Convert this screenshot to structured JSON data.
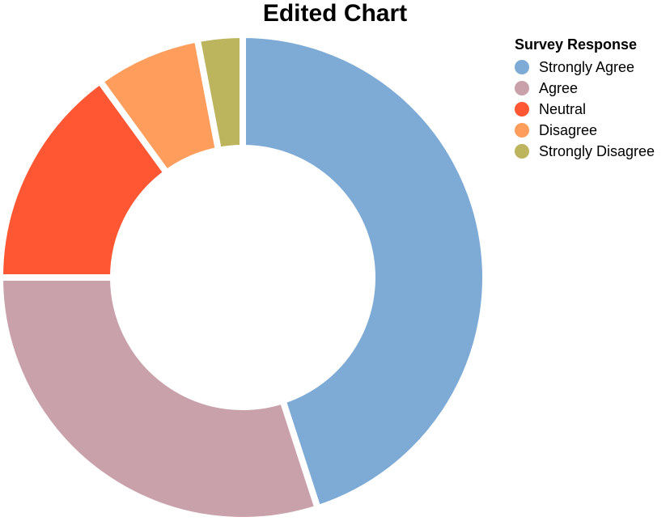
{
  "chart_data": {
    "type": "pie",
    "title": "Edited Chart",
    "legend_title": "Survey Response",
    "legend_position": "top-right",
    "donut": true,
    "categories": [
      "Strongly Agree",
      "Agree",
      "Neutral",
      "Disagree",
      "Strongly Disagree"
    ],
    "values": [
      45,
      30,
      15,
      7,
      3
    ],
    "colors": [
      "#7eaad6",
      "#c9a1ab",
      "#ff5733",
      "#ff9d5c",
      "#bdb45e"
    ]
  }
}
